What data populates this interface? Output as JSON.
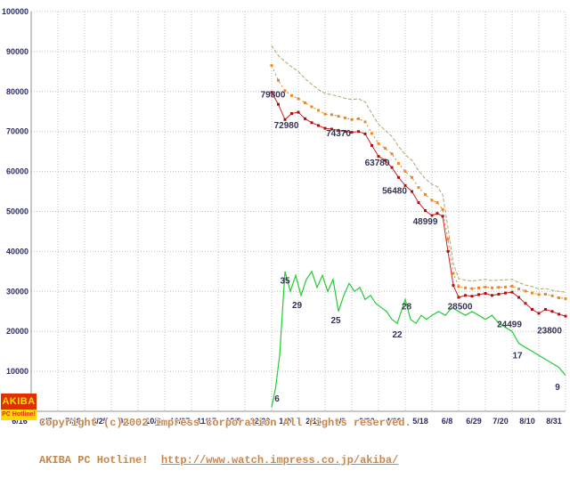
{
  "chart_data": {
    "type": "line",
    "title": "",
    "grid": true,
    "legend": false,
    "x_axis": {
      "labels": [
        "6/16",
        "7/7",
        "7/28",
        "8/25",
        "9/15",
        "10/6",
        "10/27",
        "11/17",
        "12/8",
        "12/29",
        "1/26",
        "2/16",
        "3/9",
        "3/30",
        "4/20",
        "5/18",
        "6/8",
        "6/29",
        "7/20",
        "8/10",
        "8/31"
      ]
    },
    "y_axis": {
      "min": 0,
      "max": 100000,
      "step": 10000
    },
    "colors": {
      "grid": "#c0c0c0",
      "axis": "#909090",
      "tick_text": "#2b2b66",
      "annotation": "#333355"
    },
    "series": [
      {
        "name": "highest_price",
        "style": "dashed",
        "color": "#b4a474",
        "marker": false,
        "points": [
          [
            9,
            91500
          ],
          [
            9.25,
            89000
          ],
          [
            9.5,
            87500
          ],
          [
            9.75,
            86200
          ],
          [
            10,
            85000
          ],
          [
            10.25,
            83200
          ],
          [
            10.5,
            81800
          ],
          [
            10.75,
            80500
          ],
          [
            11,
            79500
          ],
          [
            11.25,
            79200
          ],
          [
            11.5,
            78800
          ],
          [
            11.75,
            78300
          ],
          [
            12,
            78000
          ],
          [
            12.25,
            78200
          ],
          [
            12.5,
            77400
          ],
          [
            12.75,
            74500
          ],
          [
            13,
            71800
          ],
          [
            13.25,
            70300
          ],
          [
            13.5,
            68800
          ],
          [
            13.75,
            66300
          ],
          [
            14,
            64200
          ],
          [
            14.25,
            62800
          ],
          [
            14.5,
            60200
          ],
          [
            14.75,
            58200
          ],
          [
            15,
            56800
          ],
          [
            15.2,
            56200
          ],
          [
            15.4,
            54200
          ],
          [
            15.6,
            46000
          ],
          [
            15.8,
            37000
          ],
          [
            16,
            33200
          ],
          [
            16.25,
            32800
          ],
          [
            16.5,
            32600
          ],
          [
            16.75,
            32800
          ],
          [
            17,
            33000
          ],
          [
            17.25,
            32700
          ],
          [
            17.5,
            32800
          ],
          [
            17.75,
            32900
          ],
          [
            18,
            33000
          ],
          [
            18.25,
            32200
          ],
          [
            18.5,
            31600
          ],
          [
            18.75,
            31200
          ],
          [
            19,
            30600
          ],
          [
            19.25,
            30700
          ],
          [
            19.5,
            30300
          ],
          [
            19.75,
            30000
          ],
          [
            20,
            29800
          ]
        ]
      },
      {
        "name": "average_price",
        "style": "dotted",
        "color": "#cc8833",
        "marker": true,
        "marker_color": "#ee8822",
        "points": [
          [
            9,
            86500
          ],
          [
            9.25,
            82800
          ],
          [
            9.5,
            80200
          ],
          [
            9.75,
            79000
          ],
          [
            10,
            78200
          ],
          [
            10.25,
            77200
          ],
          [
            10.5,
            76200
          ],
          [
            10.75,
            75300
          ],
          [
            11,
            74370
          ],
          [
            11.25,
            74200
          ],
          [
            11.5,
            73800
          ],
          [
            11.75,
            73400
          ],
          [
            12,
            73000
          ],
          [
            12.25,
            73200
          ],
          [
            12.5,
            72400
          ],
          [
            12.75,
            69500
          ],
          [
            13,
            67000
          ],
          [
            13.25,
            65800
          ],
          [
            13.5,
            64400
          ],
          [
            13.75,
            62000
          ],
          [
            14,
            60000
          ],
          [
            14.25,
            58500
          ],
          [
            14.5,
            56000
          ],
          [
            14.75,
            54200
          ],
          [
            15,
            52800
          ],
          [
            15.2,
            52200
          ],
          [
            15.4,
            50500
          ],
          [
            15.6,
            43000
          ],
          [
            15.8,
            34500
          ],
          [
            16,
            31200
          ],
          [
            16.25,
            30900
          ],
          [
            16.5,
            30700
          ],
          [
            16.75,
            30900
          ],
          [
            17,
            31100
          ],
          [
            17.25,
            30900
          ],
          [
            17.5,
            31000
          ],
          [
            17.75,
            31100
          ],
          [
            18,
            31300
          ],
          [
            18.25,
            30600
          ],
          [
            18.5,
            30100
          ],
          [
            18.75,
            29600
          ],
          [
            19,
            29200
          ],
          [
            19.25,
            29300
          ],
          [
            19.5,
            28900
          ],
          [
            19.75,
            28400
          ],
          [
            20,
            28200
          ]
        ]
      },
      {
        "name": "lowest_price",
        "style": "solid",
        "color": "#cc2222",
        "marker": true,
        "marker_color": "#aa1111",
        "points": [
          [
            9,
            79800
          ],
          [
            9.25,
            76800
          ],
          [
            9.5,
            72980
          ],
          [
            9.75,
            74500
          ],
          [
            10,
            74800
          ],
          [
            10.25,
            73200
          ],
          [
            10.5,
            72200
          ],
          [
            10.75,
            71500
          ],
          [
            11,
            70800
          ],
          [
            11.25,
            70600
          ],
          [
            11.5,
            70300
          ],
          [
            11.75,
            70000
          ],
          [
            12,
            69800
          ],
          [
            12.25,
            70000
          ],
          [
            12.5,
            69400
          ],
          [
            12.75,
            66500
          ],
          [
            13,
            63780
          ],
          [
            13.25,
            62800
          ],
          [
            13.5,
            61000
          ],
          [
            13.75,
            58500
          ],
          [
            14,
            56480
          ],
          [
            14.25,
            55000
          ],
          [
            14.5,
            52200
          ],
          [
            14.75,
            50200
          ],
          [
            15,
            48999
          ],
          [
            15.2,
            49500
          ],
          [
            15.4,
            48800
          ],
          [
            15.6,
            40000
          ],
          [
            15.8,
            31500
          ],
          [
            16,
            28500
          ],
          [
            16.25,
            29000
          ],
          [
            16.5,
            28800
          ],
          [
            16.75,
            29200
          ],
          [
            17,
            29500
          ],
          [
            17.25,
            29000
          ],
          [
            17.5,
            29300
          ],
          [
            17.75,
            29600
          ],
          [
            18,
            29800
          ],
          [
            18.25,
            28500
          ],
          [
            18.5,
            27000
          ],
          [
            18.75,
            25500
          ],
          [
            19,
            24499
          ],
          [
            19.25,
            25500
          ],
          [
            19.5,
            25000
          ],
          [
            19.75,
            24300
          ],
          [
            20,
            23800
          ]
        ]
      },
      {
        "name": "shop_count",
        "style": "solid",
        "color": "#22cc33",
        "marker": false,
        "value_scale": 1000,
        "width": 1.2,
        "points": [
          [
            9,
            1
          ],
          [
            9.15,
            6
          ],
          [
            9.3,
            14
          ],
          [
            9.5,
            35
          ],
          [
            9.7,
            30
          ],
          [
            9.9,
            34
          ],
          [
            10.1,
            29
          ],
          [
            10.3,
            33
          ],
          [
            10.5,
            35
          ],
          [
            10.7,
            31
          ],
          [
            10.9,
            34
          ],
          [
            11.1,
            30
          ],
          [
            11.3,
            33
          ],
          [
            11.5,
            25
          ],
          [
            11.7,
            29
          ],
          [
            11.9,
            32
          ],
          [
            12.1,
            30
          ],
          [
            12.3,
            31
          ],
          [
            12.5,
            28
          ],
          [
            12.7,
            29
          ],
          [
            12.9,
            27
          ],
          [
            13.1,
            26
          ],
          [
            13.3,
            25
          ],
          [
            13.5,
            23
          ],
          [
            13.7,
            22
          ],
          [
            14,
            28
          ],
          [
            14.2,
            23
          ],
          [
            14.4,
            22
          ],
          [
            14.6,
            24
          ],
          [
            14.8,
            23
          ],
          [
            15,
            24
          ],
          [
            15.25,
            25
          ],
          [
            15.5,
            24
          ],
          [
            15.75,
            26
          ],
          [
            16,
            25
          ],
          [
            16.25,
            24
          ],
          [
            16.5,
            25
          ],
          [
            16.75,
            24
          ],
          [
            17,
            23
          ],
          [
            17.25,
            24
          ],
          [
            17.5,
            22
          ],
          [
            17.75,
            21
          ],
          [
            18,
            20
          ],
          [
            18.25,
            17
          ],
          [
            18.5,
            16
          ],
          [
            18.75,
            15
          ],
          [
            19,
            14
          ],
          [
            19.25,
            13
          ],
          [
            19.5,
            12
          ],
          [
            19.75,
            11
          ],
          [
            20,
            9
          ]
        ]
      }
    ],
    "annotations": [
      {
        "text": "79800",
        "t": 9.05,
        "y": 78500
      },
      {
        "text": "72980",
        "t": 9.55,
        "y": 70800
      },
      {
        "text": "74370",
        "t": 11.5,
        "y": 68800
      },
      {
        "text": "63780",
        "t": 12.95,
        "y": 61500
      },
      {
        "text": "56480",
        "t": 13.6,
        "y": 54500
      },
      {
        "text": "48999",
        "t": 14.75,
        "y": 46800
      },
      {
        "text": "28500",
        "t": 16.05,
        "y": 25500
      },
      {
        "text": "24499",
        "t": 17.9,
        "y": 21000
      },
      {
        "text": "23800",
        "t": 19.4,
        "y": 19500
      },
      {
        "text": "35",
        "t": 9.5,
        "y": 32000
      },
      {
        "text": "29",
        "t": 9.95,
        "y": 25800
      },
      {
        "text": "25",
        "t": 11.4,
        "y": 22000
      },
      {
        "text": "22",
        "t": 13.7,
        "y": 18500
      },
      {
        "text": "28",
        "t": 14.05,
        "y": 25500
      },
      {
        "text": "6",
        "t": 9.2,
        "y": 2500
      },
      {
        "text": "17",
        "t": 18.2,
        "y": 13200
      },
      {
        "text": "9",
        "t": 19.7,
        "y": 5400
      }
    ]
  },
  "footer": {
    "logo": {
      "line1": "AKIBA",
      "line2": "PC Hotline!"
    },
    "copyright": "Copyright (c)2002 impress corporation All rights reserved.",
    "site_name": "AKIBA PC Hotline!",
    "site_url": "http://www.watch.impress.co.jp/akiba/"
  }
}
